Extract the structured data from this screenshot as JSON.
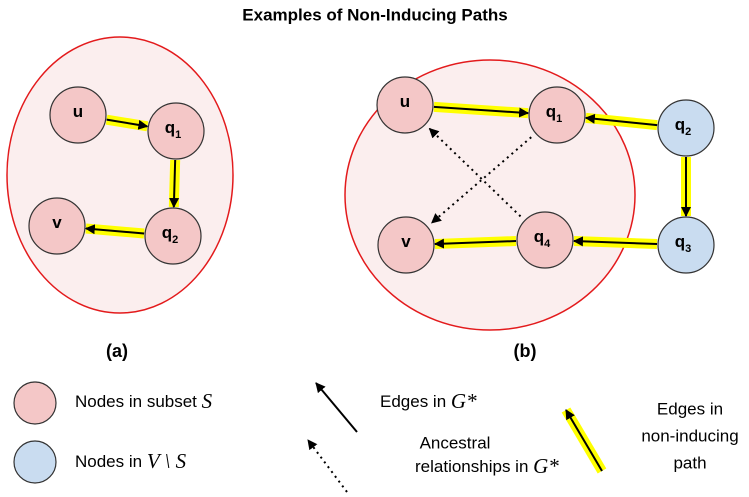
{
  "title": "Examples of Non-Inducing Paths",
  "panels": [
    {
      "label": "(a)",
      "nodes": [
        {
          "label": "u",
          "sub": null
        },
        {
          "label": "q",
          "sub": "1"
        },
        {
          "label": "q",
          "sub": "2"
        },
        {
          "label": "v",
          "sub": null
        }
      ]
    },
    {
      "label": "(b)",
      "nodes": [
        {
          "label": "u",
          "sub": null
        },
        {
          "label": "q",
          "sub": "1"
        },
        {
          "label": "q",
          "sub": "2"
        },
        {
          "label": "q",
          "sub": "3"
        },
        {
          "label": "q",
          "sub": "4"
        },
        {
          "label": "v",
          "sub": null
        }
      ]
    }
  ],
  "legend": {
    "subset": {
      "text": "Nodes in subset",
      "math": "S"
    },
    "complement": {
      "text": "Nodes in",
      "math": "V \\ S"
    },
    "edges": {
      "text": "Edges in",
      "math": "G*"
    },
    "ancestral": {
      "line1": "Ancestral",
      "line2": "relationships in",
      "math": "G*"
    },
    "path": {
      "line1": "Edges in",
      "line2": "non-inducing",
      "line3": "path"
    }
  }
}
